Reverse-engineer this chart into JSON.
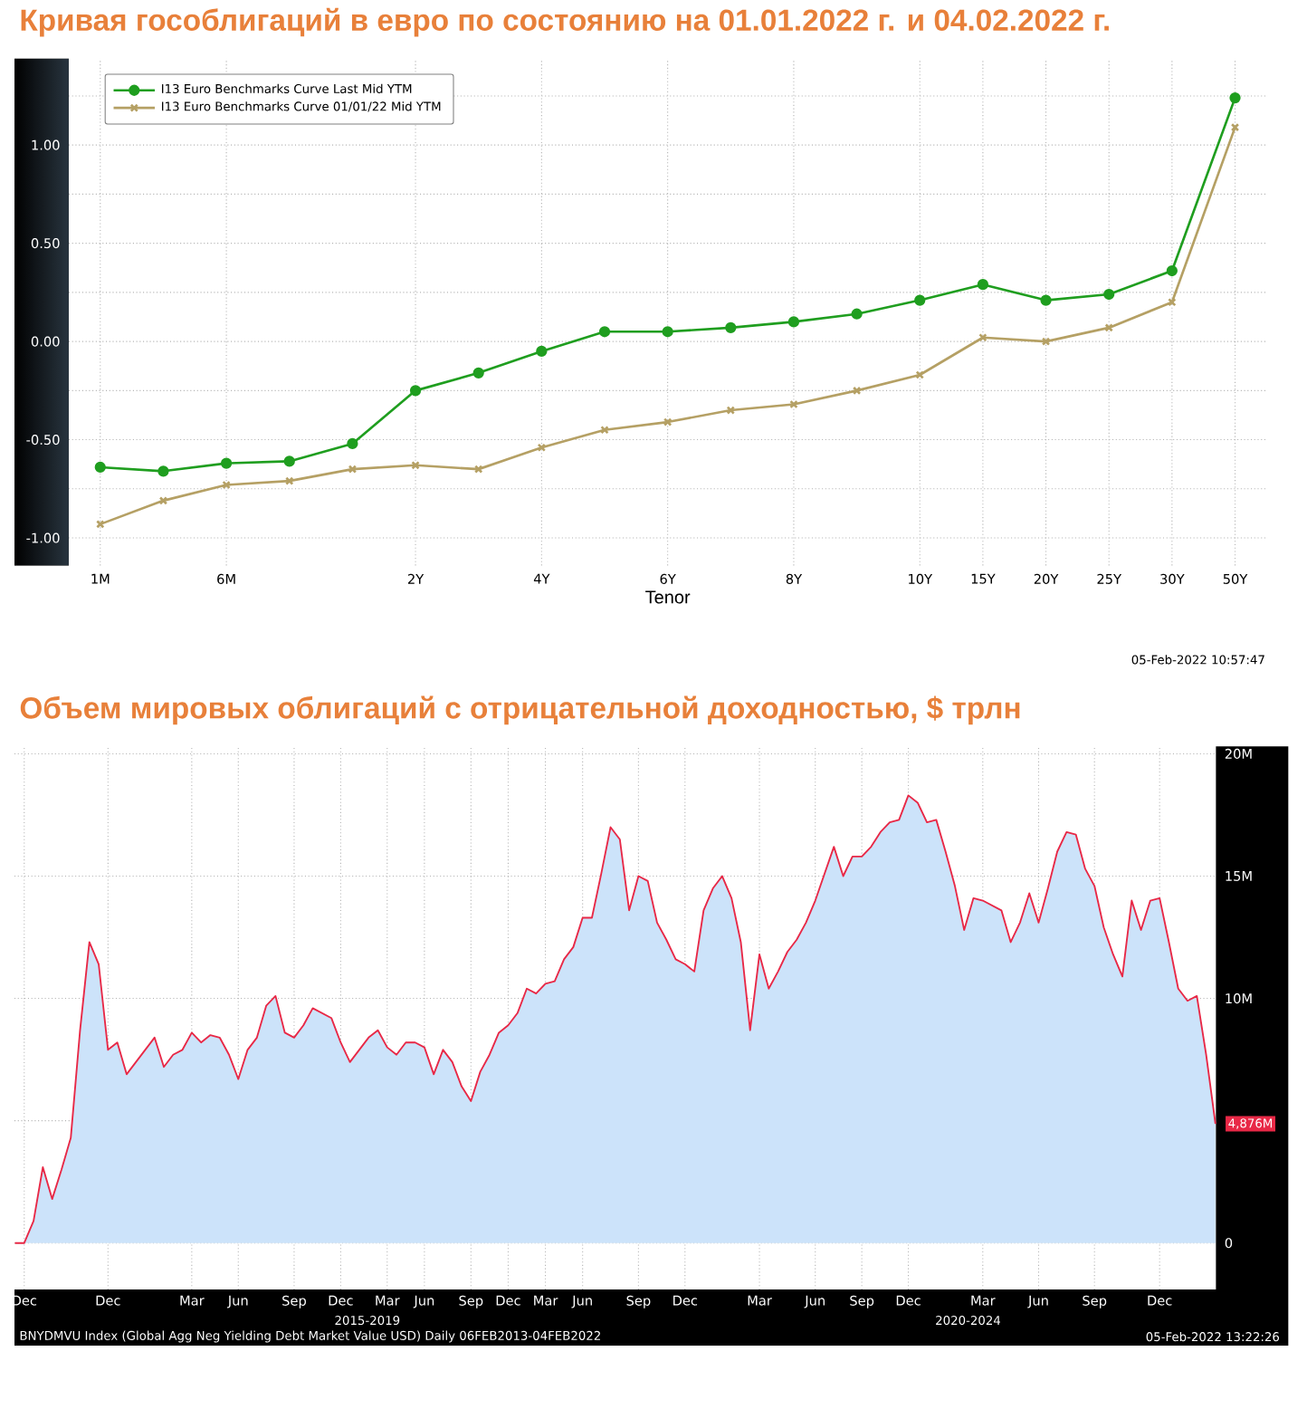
{
  "chart_data": [
    {
      "type": "line",
      "title": "Кривая гособлигаций в евро по состоянию на 01.01.2022 г. и 04.02.2022 г.",
      "xlabel": "Tenor",
      "categories": [
        "1M",
        null,
        "6M",
        null,
        null,
        "2Y",
        null,
        "4Y",
        null,
        "6Y",
        null,
        "8Y",
        null,
        "10Y",
        "15Y",
        "20Y",
        "25Y",
        "30Y",
        "50Y"
      ],
      "series": [
        {
          "name": "I13 Euro Benchmarks Curve Last Mid YTM",
          "color": "#1f9e1f",
          "marker": "circle",
          "values": [
            -0.64,
            -0.66,
            -0.62,
            -0.61,
            -0.52,
            -0.25,
            -0.16,
            -0.05,
            0.05,
            0.05,
            0.07,
            0.1,
            0.14,
            0.21,
            0.29,
            0.21,
            0.24,
            0.36,
            1.24
          ]
        },
        {
          "name": "I13 Euro Benchmarks Curve 01/01/22 Mid YTM",
          "color": "#b5a064",
          "marker": "cross",
          "values": [
            -0.93,
            -0.81,
            -0.73,
            -0.71,
            -0.65,
            -0.63,
            -0.65,
            -0.54,
            -0.45,
            -0.41,
            -0.35,
            -0.32,
            -0.25,
            -0.17,
            0.02,
            0.0,
            0.07,
            0.2,
            1.09
          ]
        }
      ],
      "ylim": [
        -1.14,
        1.44
      ],
      "yticks": [
        {
          "value": -1,
          "label": "-1.00"
        },
        {
          "value": -0.75,
          "label": null
        },
        {
          "value": -0.5,
          "label": "-0.50"
        },
        {
          "value": -0.25,
          "label": null
        },
        {
          "value": 0,
          "label": "0.00"
        },
        {
          "value": 0.25,
          "label": null
        },
        {
          "value": 0.5,
          "label": "0.50"
        },
        {
          "value": 0.75,
          "label": null
        },
        {
          "value": 1,
          "label": "1.00"
        },
        {
          "value": 1.25,
          "label": null
        }
      ],
      "grid": true,
      "legend": "top left",
      "line_style": "solid",
      "annotations": [
        "05-Feb-2022 10:57:47"
      ]
    },
    {
      "type": "area",
      "title": "Объем мировых облигаций с отрицательной доходностью, $ трлн",
      "color": "#cce3fa",
      "categories": [
        null,
        "Dec",
        null,
        null,
        null,
        null,
        null,
        null,
        null,
        null,
        "Dec",
        null,
        null,
        null,
        null,
        null,
        null,
        null,
        null,
        "Mar",
        null,
        null,
        null,
        null,
        "Jun",
        null,
        null,
        null,
        null,
        null,
        "Sep",
        null,
        null,
        null,
        null,
        "Dec",
        null,
        null,
        null,
        null,
        "Mar",
        null,
        null,
        null,
        "Jun",
        null,
        null,
        null,
        null,
        "Sep",
        null,
        null,
        null,
        "Dec",
        null,
        null,
        null,
        "Mar",
        null,
        null,
        null,
        "Jun",
        null,
        null,
        null,
        null,
        null,
        "Sep",
        null,
        null,
        null,
        null,
        "Dec",
        null,
        null,
        null,
        null,
        null,
        null,
        null,
        "Mar",
        null,
        null,
        null,
        null,
        null,
        "Jun",
        null,
        null,
        null,
        null,
        "Sep",
        null,
        null,
        null,
        null,
        "Dec",
        null,
        null,
        null,
        null,
        null,
        null,
        null,
        "Mar",
        null,
        null,
        null,
        null,
        null,
        "Jun",
        null,
        null,
        null,
        null,
        null,
        "Sep",
        null,
        null,
        null,
        null,
        null,
        null,
        "Dec",
        null,
        null,
        null,
        null,
        null,
        null
      ],
      "values": [
        0,
        0,
        0.9,
        3.1,
        1.8,
        3.0,
        4.3,
        8.7,
        12.3,
        11.4,
        7.9,
        8.2,
        6.9,
        7.4,
        7.9,
        8.4,
        7.2,
        7.7,
        7.9,
        8.6,
        8.2,
        8.5,
        8.4,
        7.7,
        6.7,
        7.9,
        8.4,
        9.7,
        10.1,
        8.6,
        8.4,
        8.9,
        9.6,
        9.4,
        9.2,
        8.2,
        7.4,
        7.9,
        8.4,
        8.7,
        8.0,
        7.7,
        8.2,
        8.2,
        8.0,
        6.9,
        7.9,
        7.4,
        6.4,
        5.8,
        7.0,
        7.7,
        8.6,
        8.9,
        9.4,
        10.4,
        10.2,
        10.6,
        10.7,
        11.6,
        12.1,
        13.3,
        13.3,
        15.1,
        17.0,
        16.5,
        13.6,
        15.0,
        14.8,
        13.1,
        12.4,
        11.6,
        11.4,
        11.1,
        13.6,
        14.5,
        15.0,
        14.1,
        12.3,
        8.7,
        11.8,
        10.4,
        11.1,
        11.9,
        12.4,
        13.1,
        14.0,
        15.1,
        16.2,
        15.0,
        15.8,
        15.8,
        16.2,
        16.8,
        17.2,
        17.3,
        18.3,
        18.0,
        17.2,
        17.3,
        16.0,
        14.6,
        12.8,
        14.1,
        14.0,
        13.8,
        13.6,
        12.3,
        13.1,
        14.3,
        13.1,
        14.5,
        16.0,
        16.8,
        16.7,
        15.3,
        14.6,
        12.9,
        11.8,
        10.9,
        14.0,
        12.8,
        14.0,
        14.1,
        12.3,
        10.4,
        9.9,
        10.1,
        7.7,
        4.876
      ],
      "ylim": [
        -1.9,
        20.3
      ],
      "yticks": [
        0,
        {
          "value": 5,
          "label": null
        },
        {
          "value": 10,
          "label": "10M"
        },
        {
          "value": 15,
          "label": "15M"
        },
        {
          "value": 20,
          "label": "20M"
        }
      ],
      "grid": true,
      "annotations": [
        "4,876M",
        "2015-2019",
        "2020-2024",
        "BNYDMVU Index (Global Agg Neg Yielding Debt Market Value USD) Daily 06FEB2013-04FEB2022",
        "05-Feb-2022 13:22:26"
      ]
    }
  ]
}
